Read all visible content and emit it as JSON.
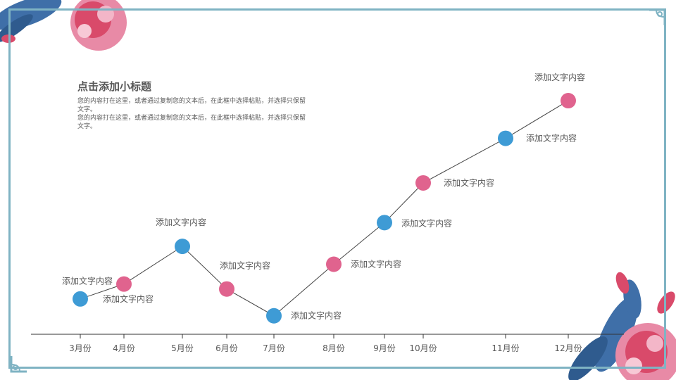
{
  "slide": {
    "subtitle": "点击添加小标题",
    "paragraphs": [
      "您的内容打在这里，或者通过复制您的文本后，在此框中选择粘贴，并选择只保留文字。",
      "您的内容打在这里，或者通过复制您的文本后，在此框中选择粘贴，并选择只保留文字。"
    ]
  },
  "colors": {
    "blue_point": "#3e9bd5",
    "pink_point": "#e0638e",
    "line": "#444444",
    "axis": "#333333",
    "frame": "#7fb3c3",
    "text": "#595959"
  },
  "chart_data": {
    "type": "line",
    "categories": [
      "3月份",
      "4月份",
      "5月份",
      "6月份",
      "7月份",
      "8月份",
      "9月份",
      "10月份",
      "11月份",
      "12月份"
    ],
    "values": [
      2.5,
      4.0,
      7.8,
      3.5,
      0.8,
      6.0,
      10.2,
      14.2,
      18.7,
      22.5
    ],
    "point_colors": [
      "blue",
      "pink",
      "blue",
      "pink",
      "blue",
      "pink",
      "blue",
      "pink",
      "blue",
      "pink"
    ],
    "point_labels": [
      "添加文字内容",
      "添加文字内容",
      "添加文字内容",
      "添加文字内容",
      "添加文字内容",
      "添加文字内容",
      "添加文字内容",
      "添加文字内容",
      "添加文字内容",
      "添加文字内容"
    ],
    "title": "",
    "xlabel": "",
    "ylabel": "",
    "y_axis_visible": false,
    "grid": false,
    "legend": "none"
  }
}
